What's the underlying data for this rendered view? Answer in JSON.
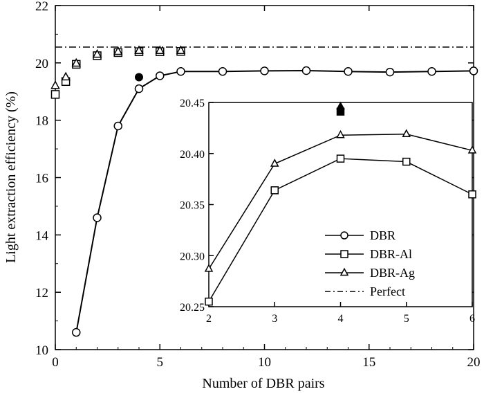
{
  "chart_data": [
    {
      "type": "line",
      "title": "",
      "xlabel": "Number of DBR pairs",
      "ylabel": "Light extraction efficiency (%)",
      "xlim": [
        0,
        20
      ],
      "ylim": [
        10,
        22
      ],
      "xticks": [
        "0",
        "5",
        "10",
        "15",
        "20"
      ],
      "yticks": [
        "10",
        "12",
        "14",
        "16",
        "18",
        "20",
        "22"
      ],
      "grid": false,
      "series": [
        {
          "name": "DBR",
          "marker": "circle",
          "line": "solid",
          "x": [
            1,
            2,
            3,
            4,
            5,
            6,
            8,
            10,
            12,
            14,
            16,
            18,
            20
          ],
          "y": [
            10.6,
            14.6,
            17.8,
            19.1,
            19.55,
            19.7,
            19.7,
            19.72,
            19.73,
            19.7,
            19.68,
            19.7,
            19.72
          ]
        },
        {
          "name": "DBR-Al",
          "marker": "square",
          "line": "none",
          "x": [
            0,
            0.5,
            1,
            2,
            3,
            4,
            5,
            6
          ],
          "y": [
            18.9,
            19.35,
            19.95,
            20.25,
            20.36,
            20.39,
            20.39,
            20.4
          ]
        },
        {
          "name": "DBR-Ag",
          "marker": "triangle",
          "line": "none",
          "x": [
            0,
            0.5,
            1,
            2,
            3,
            4,
            5,
            6
          ],
          "y": [
            19.2,
            19.5,
            19.98,
            20.29,
            20.39,
            20.42,
            20.42,
            20.42
          ]
        },
        {
          "name": "Perfect",
          "marker": "none",
          "line": "dash-dot",
          "x": [
            0,
            20
          ],
          "y": [
            20.55,
            20.55
          ]
        }
      ],
      "highlight_point": {
        "x": 4,
        "y": 19.5,
        "marker": "filled-circle"
      },
      "legend": {
        "placement": "inside-right",
        "items": [
          "DBR",
          "DBR-Al",
          "DBR-Ag",
          "Perfect"
        ]
      }
    },
    {
      "type": "line",
      "title": "",
      "xlabel": "",
      "ylabel": "",
      "xlim": [
        2,
        6
      ],
      "ylim": [
        20.25,
        20.45
      ],
      "xticks": [
        "2",
        "3",
        "4",
        "5",
        "6"
      ],
      "yticks": [
        "20.25",
        "20.30",
        "20.35",
        "20.40",
        "20.45"
      ],
      "grid": false,
      "series": [
        {
          "name": "DBR-Al",
          "marker": "square",
          "x": [
            2,
            3,
            4,
            5,
            6
          ],
          "y": [
            20.255,
            20.364,
            20.395,
            20.392,
            20.36
          ]
        },
        {
          "name": "DBR-Ag",
          "marker": "triangle",
          "x": [
            2,
            3,
            4,
            5,
            6
          ],
          "y": [
            20.287,
            20.39,
            20.418,
            20.419,
            20.403
          ]
        }
      ],
      "highlight_points": [
        {
          "x": 4,
          "y": 20.446,
          "marker": "filled-triangle"
        },
        {
          "x": 4,
          "y": 20.441,
          "marker": "filled-square"
        }
      ]
    }
  ]
}
